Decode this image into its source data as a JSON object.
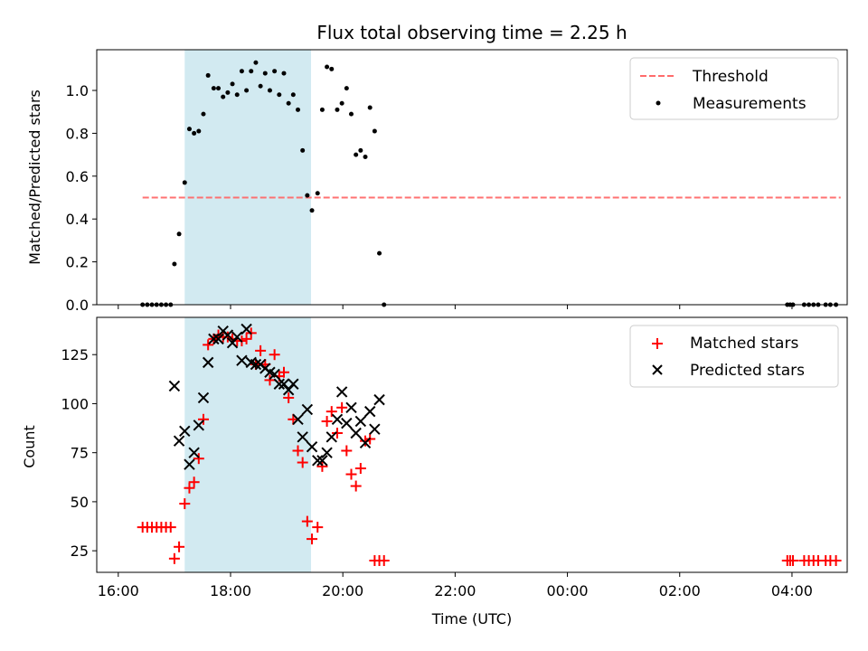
{
  "chart_data": [
    {
      "type": "scatter",
      "title": "Flux total observing time = 2.25 h",
      "ylabel": "Matched/Predicted stars",
      "xlabel": "",
      "ylim": [
        0,
        1.19
      ],
      "yticks": [
        0.0,
        0.2,
        0.4,
        0.6,
        0.8,
        1.0
      ],
      "ytick_labels": [
        "0.0",
        "0.2",
        "0.4",
        "0.6",
        "0.8",
        "1.0"
      ],
      "x_axis": "time",
      "highlight_span": {
        "start": "17:11",
        "end": "19:26",
        "color": "#add8e6"
      },
      "legend_position": "top-right",
      "series": [
        {
          "name": "Threshold",
          "kind": "line",
          "style": "dashed",
          "color": "#ff6b6b",
          "x": [
            "16:26",
            "04:52"
          ],
          "y": [
            0.5,
            0.5
          ]
        },
        {
          "name": "Measurements",
          "kind": "scatter",
          "marker": "dot",
          "color": "#000000",
          "x": [
            "16:26",
            "16:31",
            "16:36",
            "16:41",
            "16:46",
            "16:51",
            "16:56",
            "17:00",
            "17:05",
            "17:11",
            "17:16",
            "17:21",
            "17:26",
            "17:31",
            "17:36",
            "17:42",
            "17:47",
            "17:52",
            "17:57",
            "18:02",
            "18:07",
            "18:12",
            "18:17",
            "18:22",
            "18:27",
            "18:32",
            "18:37",
            "18:42",
            "18:47",
            "18:52",
            "18:57",
            "19:02",
            "19:07",
            "19:12",
            "19:17",
            "19:22",
            "19:27",
            "19:33",
            "19:38",
            "19:43",
            "19:48",
            "19:54",
            "19:59",
            "20:04",
            "20:09",
            "20:14",
            "20:19",
            "20:24",
            "20:29",
            "20:34",
            "20:39",
            "20:44",
            "03:55",
            "03:58",
            "04:01",
            "04:13",
            "04:18",
            "04:23",
            "04:28",
            "04:36",
            "04:41",
            "04:47"
          ],
          "y": [
            0.0,
            0.0,
            0.0,
            0.0,
            0.0,
            0.0,
            0.0,
            0.19,
            0.33,
            0.57,
            0.82,
            0.8,
            0.81,
            0.89,
            1.07,
            1.01,
            1.01,
            0.97,
            0.99,
            1.03,
            0.98,
            1.09,
            1.0,
            1.09,
            1.13,
            1.02,
            1.08,
            1.0,
            1.09,
            0.98,
            1.08,
            0.94,
            0.98,
            0.91,
            0.72,
            0.51,
            0.44,
            0.52,
            0.91,
            1.11,
            1.1,
            0.91,
            0.94,
            1.01,
            0.89,
            0.7,
            0.72,
            0.69,
            0.92,
            0.81,
            0.24,
            0.0,
            0.0,
            0.0,
            0.0,
            0.0,
            0.0,
            0.0,
            0.0,
            0.0,
            0.0,
            0.0
          ]
        }
      ]
    },
    {
      "type": "scatter",
      "title": "",
      "ylabel": "Count",
      "xlabel": "Time (UTC)",
      "ylim": [
        14,
        144
      ],
      "yticks": [
        25,
        50,
        75,
        100,
        125
      ],
      "ytick_labels": [
        "25",
        "50",
        "75",
        "100",
        "125"
      ],
      "x_axis": "time",
      "xticks": [
        "16:00",
        "18:00",
        "20:00",
        "22:00",
        "00:00",
        "02:00",
        "04:00"
      ],
      "highlight_span": {
        "start": "17:11",
        "end": "19:26",
        "color": "#add8e6"
      },
      "legend_position": "top-right",
      "series": [
        {
          "name": "Matched stars",
          "kind": "scatter",
          "marker": "plus",
          "color": "#ff0000",
          "x": [
            "16:26",
            "16:31",
            "16:36",
            "16:41",
            "16:46",
            "16:51",
            "16:56",
            "17:00",
            "17:05",
            "17:11",
            "17:16",
            "17:21",
            "17:26",
            "17:31",
            "17:36",
            "17:42",
            "17:47",
            "17:52",
            "17:57",
            "18:02",
            "18:07",
            "18:12",
            "18:17",
            "18:22",
            "18:27",
            "18:32",
            "18:37",
            "18:42",
            "18:47",
            "18:52",
            "18:57",
            "19:02",
            "19:07",
            "19:12",
            "19:17",
            "19:22",
            "19:27",
            "19:33",
            "19:38",
            "19:43",
            "19:48",
            "19:54",
            "19:59",
            "20:04",
            "20:09",
            "20:14",
            "20:19",
            "20:24",
            "20:29",
            "20:34",
            "20:39",
            "20:44",
            "03:55",
            "03:58",
            "04:01",
            "04:13",
            "04:18",
            "04:23",
            "04:28",
            "04:36",
            "04:41",
            "04:47"
          ],
          "y": [
            37,
            37,
            37,
            37,
            37,
            37,
            37,
            21,
            27,
            49,
            57,
            60,
            72,
            92,
            130,
            133,
            135,
            134,
            134,
            133,
            132,
            132,
            133,
            136,
            120,
            127,
            120,
            112,
            125,
            114,
            116,
            103,
            92,
            76,
            70,
            40,
            31,
            37,
            68,
            91,
            96,
            85,
            98,
            76,
            64,
            58,
            67,
            81,
            82,
            20,
            20,
            20,
            20,
            20,
            20,
            20,
            20,
            20,
            20,
            20,
            20,
            20
          ]
        },
        {
          "name": "Predicted stars",
          "kind": "scatter",
          "marker": "x",
          "color": "#000000",
          "x": [
            "17:00",
            "17:05",
            "17:11",
            "17:16",
            "17:21",
            "17:26",
            "17:31",
            "17:36",
            "17:42",
            "17:47",
            "17:52",
            "17:57",
            "18:02",
            "18:07",
            "18:12",
            "18:17",
            "18:22",
            "18:27",
            "18:32",
            "18:37",
            "18:42",
            "18:47",
            "18:52",
            "18:57",
            "19:02",
            "19:07",
            "19:12",
            "19:17",
            "19:22",
            "19:27",
            "19:33",
            "19:38",
            "19:43",
            "19:48",
            "19:54",
            "19:59",
            "20:04",
            "20:09",
            "20:14",
            "20:19",
            "20:24",
            "20:29",
            "20:34",
            "20:39"
          ],
          "y": [
            109,
            81,
            86,
            69,
            75,
            89,
            103,
            121,
            133,
            133,
            137,
            135,
            131,
            134,
            122,
            138,
            121,
            120,
            120,
            118,
            116,
            115,
            110,
            110,
            107,
            110,
            92,
            83,
            97,
            78,
            71,
            71,
            75,
            83,
            92,
            106,
            90,
            98,
            85,
            91,
            80,
            96,
            87,
            102
          ]
        }
      ]
    }
  ]
}
